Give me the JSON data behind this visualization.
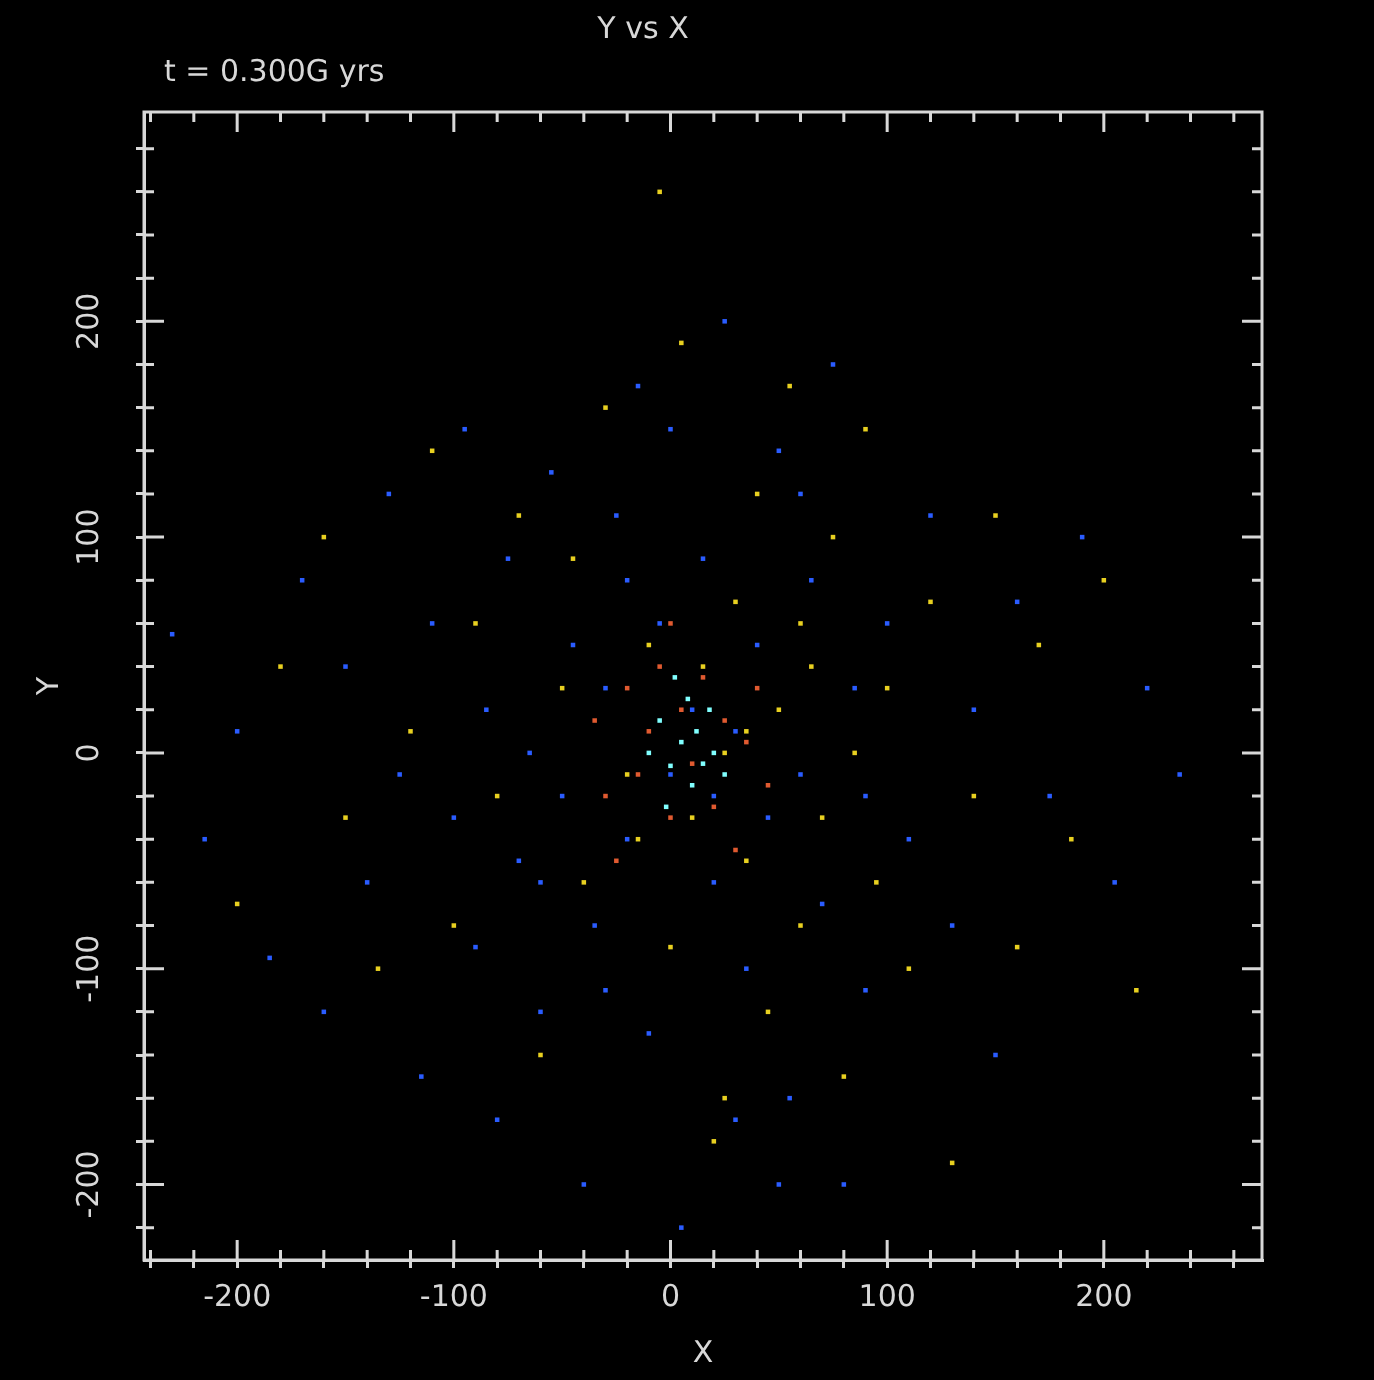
{
  "chart_data": {
    "type": "scatter",
    "title": "Y vs X",
    "xlabel": "X",
    "ylabel": "Y",
    "annotations": [
      "t = 0.300G yrs"
    ],
    "xlim": [
      -243,
      273
    ],
    "ylim": [
      -235,
      297
    ],
    "xticks": [
      {
        "value": -240,
        "label": null
      },
      {
        "value": -220,
        "label": null
      },
      -200,
      {
        "value": -180,
        "label": null
      },
      {
        "value": -160,
        "label": null
      },
      {
        "value": -140,
        "label": null
      },
      {
        "value": -120,
        "label": null
      },
      -100,
      {
        "value": -80,
        "label": null
      },
      {
        "value": -60,
        "label": null
      },
      {
        "value": -40,
        "label": null
      },
      {
        "value": -20,
        "label": null
      },
      0,
      {
        "value": 20,
        "label": null
      },
      {
        "value": 40,
        "label": null
      },
      {
        "value": 60,
        "label": null
      },
      {
        "value": 80,
        "label": null
      },
      100,
      {
        "value": 120,
        "label": null
      },
      {
        "value": 140,
        "label": null
      },
      {
        "value": 160,
        "label": null
      },
      {
        "value": 180,
        "label": null
      },
      200,
      {
        "value": 220,
        "label": null
      },
      {
        "value": 240,
        "label": null
      },
      {
        "value": 260,
        "label": null
      }
    ],
    "yticks": [
      {
        "value": -220,
        "label": null
      },
      -200,
      {
        "value": -180,
        "label": null
      },
      {
        "value": -160,
        "label": null
      },
      {
        "value": -140,
        "label": null
      },
      {
        "value": -120,
        "label": null
      },
      -100,
      {
        "value": -80,
        "label": null
      },
      {
        "value": -60,
        "label": null
      },
      {
        "value": -40,
        "label": null
      },
      {
        "value": -20,
        "label": null
      },
      0,
      {
        "value": 20,
        "label": null
      },
      {
        "value": 40,
        "label": null
      },
      {
        "value": 60,
        "label": null
      },
      {
        "value": 80,
        "label": null
      },
      100,
      {
        "value": 120,
        "label": null
      },
      {
        "value": 140,
        "label": null
      },
      {
        "value": 160,
        "label": null
      },
      {
        "value": 180,
        "label": null
      },
      200,
      {
        "value": 220,
        "label": null
      },
      {
        "value": 240,
        "label": null
      },
      {
        "value": 260,
        "label": null
      },
      {
        "value": 280,
        "label": null
      }
    ],
    "grid": false,
    "legend": false,
    "marker": "square",
    "series": [
      {
        "color": "#2a5cff",
        "x": [
          -230,
          -215,
          -200,
          -185,
          -170,
          -160,
          -150,
          -140,
          -130,
          -125,
          -115,
          -110,
          -100,
          -95,
          -90,
          -85,
          -80,
          -75,
          -70,
          -65,
          -60,
          -55,
          -50,
          -45,
          -40,
          -35,
          -30,
          -25,
          -20,
          -15,
          -10,
          -5,
          0,
          5,
          10,
          15,
          20,
          25,
          30,
          35,
          40,
          45,
          50,
          55,
          60,
          65,
          70,
          75,
          80,
          85,
          90,
          100,
          110,
          120,
          130,
          140,
          150,
          160,
          175,
          190,
          205,
          220,
          235,
          -60,
          -30,
          0,
          30,
          60,
          90,
          -20,
          20,
          50
        ],
        "values": [
          55,
          -40,
          10,
          -95,
          80,
          -120,
          40,
          -60,
          120,
          -10,
          -150,
          60,
          -30,
          150,
          -90,
          20,
          -170,
          90,
          -50,
          0,
          -120,
          130,
          -20,
          50,
          -200,
          -80,
          30,
          110,
          -40,
          170,
          -130,
          60,
          -10,
          -220,
          20,
          90,
          -60,
          200,
          10,
          -100,
          50,
          -30,
          140,
          -160,
          -10,
          80,
          -70,
          180,
          -200,
          30,
          -110,
          60,
          -40,
          110,
          -80,
          20,
          -140,
          70,
          -20,
          100,
          -60,
          30,
          -10,
          -60,
          -110,
          150,
          -170,
          120,
          -20,
          80,
          -20,
          -200
        ]
      },
      {
        "color": "#e8d020",
        "x": [
          -200,
          -180,
          -160,
          -150,
          -135,
          -120,
          -110,
          -100,
          -90,
          -80,
          -70,
          -60,
          -50,
          -40,
          -30,
          -20,
          -10,
          0,
          5,
          10,
          15,
          20,
          25,
          30,
          35,
          40,
          45,
          50,
          55,
          60,
          65,
          70,
          75,
          80,
          85,
          90,
          95,
          100,
          110,
          120,
          130,
          140,
          150,
          160,
          170,
          185,
          200,
          215,
          -5,
          25,
          -45,
          60,
          -15,
          35
        ],
        "values": [
          -70,
          40,
          100,
          -30,
          -100,
          10,
          140,
          -80,
          60,
          -20,
          110,
          -140,
          30,
          -60,
          160,
          -10,
          50,
          -90,
          190,
          -30,
          40,
          -180,
          0,
          70,
          -50,
          120,
          -120,
          20,
          170,
          -80,
          40,
          -30,
          100,
          -150,
          0,
          150,
          -60,
          30,
          -100,
          70,
          -190,
          -20,
          110,
          -90,
          50,
          -40,
          80,
          -110,
          260,
          -160,
          90,
          60,
          -40,
          10
        ]
      },
      {
        "color": "#e05a30",
        "x": [
          -30,
          -20,
          -15,
          -10,
          -5,
          0,
          5,
          10,
          15,
          20,
          25,
          30,
          35,
          40,
          -25,
          45,
          -35,
          0
        ],
        "values": [
          -20,
          30,
          -10,
          10,
          40,
          -30,
          20,
          -5,
          35,
          -25,
          15,
          -45,
          5,
          30,
          -50,
          -15,
          15,
          60
        ]
      },
      {
        "color": "#80ffff",
        "x": [
          -10,
          -5,
          0,
          5,
          8,
          10,
          12,
          15,
          18,
          20,
          2,
          -2,
          25
        ],
        "values": [
          0,
          15,
          -6,
          5,
          25,
          -15,
          10,
          -5,
          20,
          0,
          35,
          -25,
          -10
        ]
      }
    ]
  }
}
